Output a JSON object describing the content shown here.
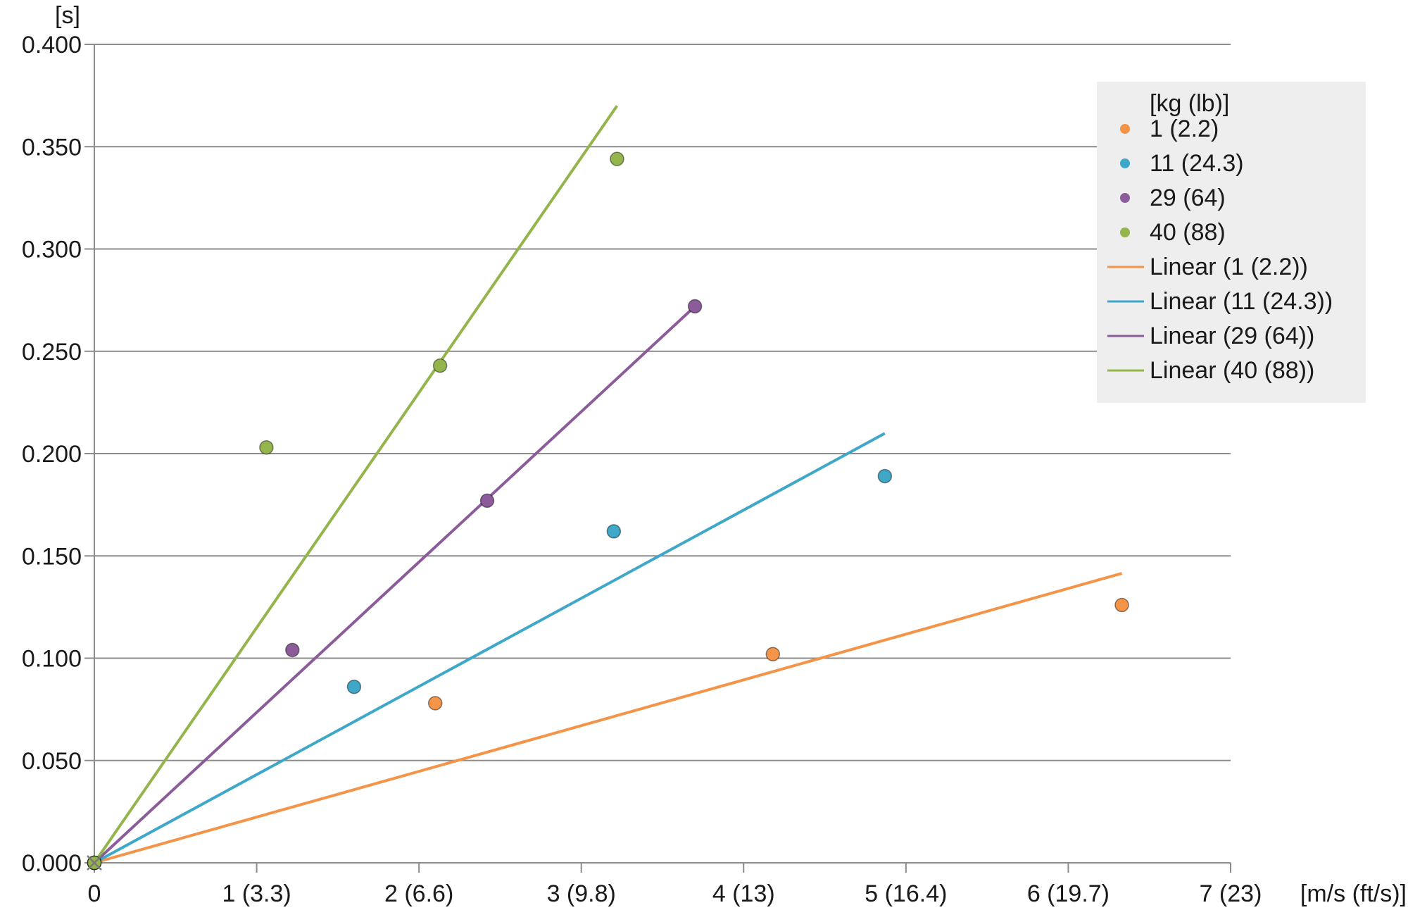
{
  "chart_data": {
    "type": "scatter",
    "title": "",
    "ylabel": "[s]",
    "xlabel": "[m/s (ft/s)]",
    "xlim": [
      0,
      7
    ],
    "ylim": [
      0,
      0.4
    ],
    "grid": "horizontal",
    "legend_position": "top-right",
    "legend_title": "[kg (lb)]",
    "x_ticks": [
      {
        "value": 0,
        "label": "0"
      },
      {
        "value": 1,
        "label": "1 (3.3)"
      },
      {
        "value": 2,
        "label": "2 (6.6)"
      },
      {
        "value": 3,
        "label": "3 (9.8)"
      },
      {
        "value": 4,
        "label": "4 (13)"
      },
      {
        "value": 5,
        "label": "5 (16.4)"
      },
      {
        "value": 6,
        "label": "6 (19.7)"
      },
      {
        "value": 7,
        "label": "7 (23)"
      }
    ],
    "y_ticks": [
      {
        "value": 0,
        "label": "0.000"
      },
      {
        "value": 0.05,
        "label": "0.050"
      },
      {
        "value": 0.1,
        "label": "0.100"
      },
      {
        "value": 0.15,
        "label": "0.150"
      },
      {
        "value": 0.2,
        "label": "0.200"
      },
      {
        "value": 0.25,
        "label": "0.250"
      },
      {
        "value": 0.3,
        "label": "0.300"
      },
      {
        "value": 0.35,
        "label": "0.350"
      },
      {
        "value": 0.4,
        "label": "0.400"
      }
    ],
    "series": [
      {
        "name": "1 (2.2)",
        "color": "#f39449",
        "points": [
          [
            0,
            0
          ],
          [
            2.1,
            0.078
          ],
          [
            4.18,
            0.102
          ],
          [
            6.33,
            0.126
          ]
        ],
        "fit": {
          "name": "Linear (1 (2.2))",
          "slope": 0.02235,
          "x_end": 6.33
        }
      },
      {
        "name": "11 (24.3)",
        "color": "#3fa8c9",
        "points": [
          [
            0,
            0
          ],
          [
            1.6,
            0.086
          ],
          [
            3.2,
            0.162
          ],
          [
            4.87,
            0.189
          ]
        ],
        "fit": {
          "name": "Linear (11 (24.3))",
          "slope": 0.0431,
          "x_end": 4.87
        }
      },
      {
        "name": "29 (64)",
        "color": "#8b5c99",
        "points": [
          [
            0,
            0
          ],
          [
            1.22,
            0.104
          ],
          [
            2.42,
            0.177
          ],
          [
            3.7,
            0.272
          ]
        ],
        "fit": {
          "name": "Linear (29 (64))",
          "slope": 0.0735,
          "x_end": 3.7
        }
      },
      {
        "name": "40 (88)",
        "color": "#93b54b",
        "points": [
          [
            0,
            0
          ],
          [
            1.06,
            0.203
          ],
          [
            2.13,
            0.243
          ],
          [
            3.22,
            0.344
          ]
        ],
        "fit": {
          "name": "Linear (40 (88))",
          "slope": 0.1149,
          "x_end": 3.22
        }
      }
    ]
  }
}
